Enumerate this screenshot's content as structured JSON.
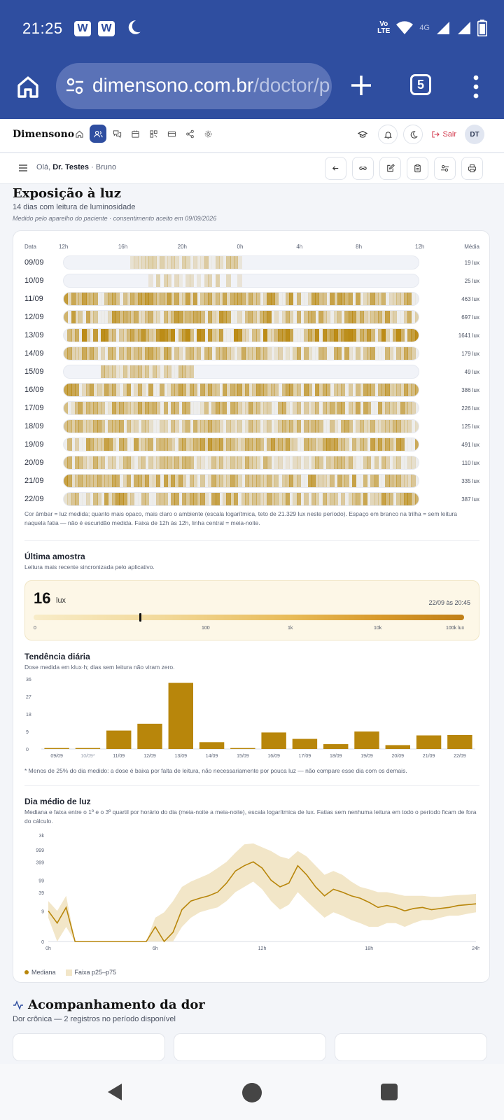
{
  "status": {
    "time": "21:25",
    "icons": [
      "w-app-icon",
      "w-app-icon",
      "moon-icon"
    ],
    "network": "4G",
    "volte": "Vo LTE"
  },
  "browser": {
    "url_host": "dimensono.com.br",
    "url_path": "/doctor/p",
    "tab_count": "5"
  },
  "app": {
    "brand": "Dimensono",
    "nav_icons": [
      "home-icon",
      "patients-icon",
      "chat-icon",
      "calendar-icon",
      "qr-icon",
      "card-icon",
      "share-icon",
      "settings-icon"
    ],
    "logout_label": "Sair",
    "avatar_initials": "DT"
  },
  "subheader": {
    "greeting_prefix": "Olá, ",
    "doctor": "Dr. Testes",
    "separator": " · ",
    "patient": "Bruno"
  },
  "light": {
    "title": "Exposição à luz",
    "subtitle": "14 dias com leitura de luminosidade",
    "note": "Medido pelo aparelho do paciente · consentimento aceito em 09/09/2026",
    "col_date": "Data",
    "col_mean": "Média",
    "hour_ticks": [
      "12h",
      "16h",
      "20h",
      "0h",
      "4h",
      "8h",
      "12h"
    ],
    "rows": [
      {
        "date": "09/09",
        "mean": "19 lux",
        "level": 0.35,
        "start": 0.18,
        "end": 0.5,
        "seed": 3
      },
      {
        "date": "10/09",
        "mean": "25 lux",
        "level": 0.3,
        "start": 0.22,
        "end": 0.5,
        "sparse": true,
        "seed": 7
      },
      {
        "date": "11/09",
        "mean": "463 lux",
        "level": 0.75,
        "start": 0.0,
        "end": 1.0,
        "seed": 11
      },
      {
        "date": "12/09",
        "mean": "697 lux",
        "level": 0.75,
        "start": 0.0,
        "end": 1.0,
        "seed": 13
      },
      {
        "date": "13/09",
        "mean": "1641 lux",
        "level": 0.9,
        "start": 0.0,
        "end": 1.0,
        "seed": 17
      },
      {
        "date": "14/09",
        "mean": "179 lux",
        "level": 0.6,
        "start": 0.0,
        "end": 1.0,
        "seed": 19
      },
      {
        "date": "15/09",
        "mean": "49 lux",
        "level": 0.4,
        "start": 0.1,
        "end": 0.36,
        "seed": 23
      },
      {
        "date": "16/09",
        "mean": "386 lux",
        "level": 0.65,
        "start": 0.0,
        "end": 1.0,
        "seed": 29
      },
      {
        "date": "17/09",
        "mean": "226 lux",
        "level": 0.6,
        "start": 0.0,
        "end": 1.0,
        "seed": 31
      },
      {
        "date": "18/09",
        "mean": "125 lux",
        "level": 0.55,
        "start": 0.0,
        "end": 1.0,
        "seed": 37
      },
      {
        "date": "19/09",
        "mean": "491 lux",
        "level": 0.7,
        "start": 0.0,
        "end": 1.0,
        "seed": 41
      },
      {
        "date": "20/09",
        "mean": "110 lux",
        "level": 0.5,
        "start": 0.0,
        "end": 1.0,
        "seed": 43
      },
      {
        "date": "21/09",
        "mean": "335 lux",
        "level": 0.65,
        "start": 0.0,
        "end": 1.0,
        "seed": 47
      },
      {
        "date": "22/09",
        "mean": "387 lux",
        "level": 0.65,
        "start": 0.0,
        "end": 1.0,
        "seed": 53
      }
    ],
    "caption": "Cor âmbar = luz medida; quanto mais opaco, mais claro o ambiente (escala logarítmica, teto de 21.329 lux neste período). Espaço em branco na trilha = sem leitura naquela fatia — não é escuridão medida. Faixa de 12h às 12h, linha central = meia-noite."
  },
  "last_sample": {
    "title": "Última amostra",
    "desc": "Leitura mais recente sincronizada pelo aplicativo.",
    "value": "16",
    "unit": "lux",
    "timestamp": "22/09 às 20:45",
    "lux_value": 16,
    "scale_labels": [
      "0",
      "100",
      "1k",
      "10k",
      "100k lux"
    ]
  },
  "daily_trend": {
    "title": "Tendência diária",
    "desc": "Dose medida em klux·h; dias sem leitura não viram zero.",
    "footnote": "* Menos de 25% do dia medido: a dose é baixa por falta de leitura, não necessariamente por pouca luz — não compare esse dia com os demais."
  },
  "mean_day": {
    "title": "Dia médio de luz",
    "desc": "Mediana e faixa entre o 1º e o 3º quartil por horário do dia (meia-noite a meia-noite), escala logarítmica de lux. Fatias sem nenhuma leitura em todo o período ficam de fora do cálculo.",
    "legend_median": "Mediana",
    "legend_band": "Faixa p25–p75"
  },
  "pain": {
    "title": "Acompanhamento da dor",
    "subtitle": "Dor crônica — 2 registros no período disponível"
  },
  "colors": {
    "brand": "#2f4ea0",
    "amber": "#b8860b",
    "band": "#f2e6c8",
    "logout": "#d33a4d"
  },
  "chart_data": [
    {
      "type": "bar",
      "title": "Tendência diária",
      "ylabel": "klux·h",
      "categories": [
        "09/09",
        "10/09*",
        "11/09",
        "12/09",
        "13/09",
        "14/09",
        "15/09",
        "16/09",
        "17/09",
        "18/09",
        "19/09",
        "20/09",
        "21/09",
        "22/09"
      ],
      "values": [
        0.5,
        0.5,
        9.5,
        13,
        34,
        3.5,
        0.5,
        8.5,
        5.2,
        2.5,
        9,
        2,
        7,
        7.2
      ],
      "yticks": [
        0,
        9,
        18,
        27,
        36
      ],
      "ylim": [
        0,
        36
      ]
    },
    {
      "type": "area",
      "title": "Dia médio de luz",
      "xlabel": "",
      "ylabel": "lux",
      "yscale": "log",
      "xticks": [
        "0h",
        "6h",
        "12h",
        "18h",
        "24h"
      ],
      "yticks": [
        "0",
        "9",
        "39",
        "99",
        "399",
        "999",
        "3k"
      ],
      "hours": [
        0,
        0.5,
        1,
        1.5,
        2,
        2.5,
        3,
        3.5,
        4,
        4.5,
        5,
        5.5,
        6,
        6.5,
        7,
        7.5,
        8,
        8.5,
        9,
        9.5,
        10,
        10.5,
        11,
        11.5,
        12,
        12.5,
        13,
        13.5,
        14,
        14.5,
        15,
        15.5,
        16,
        16.5,
        17,
        17.5,
        18,
        18.5,
        19,
        19.5,
        20,
        20.5,
        21,
        21.5,
        22,
        22.5,
        23,
        23.5,
        24
      ],
      "median": [
        9,
        3,
        12,
        0,
        0,
        0,
        0,
        0,
        0,
        0,
        0,
        0,
        2,
        0,
        1,
        10,
        20,
        25,
        30,
        40,
        80,
        200,
        300,
        400,
        250,
        100,
        60,
        80,
        300,
        150,
        60,
        30,
        50,
        40,
        30,
        25,
        18,
        12,
        14,
        12,
        9,
        11,
        12,
        10,
        11,
        12,
        14,
        15,
        16
      ],
      "p25": [
        5,
        0,
        2,
        0,
        0,
        0,
        0,
        0,
        0,
        0,
        0,
        0,
        0,
        0,
        0,
        2,
        5,
        8,
        10,
        12,
        20,
        40,
        60,
        90,
        50,
        20,
        10,
        15,
        40,
        20,
        10,
        5,
        8,
        6,
        4,
        3,
        2,
        2,
        3,
        3,
        2,
        3,
        4,
        4,
        5,
        6,
        6,
        7,
        8
      ],
      "p75": [
        20,
        9,
        30,
        0,
        0,
        0,
        0,
        0,
        0,
        0,
        0,
        0,
        5,
        8,
        20,
        60,
        90,
        120,
        160,
        250,
        400,
        800,
        1500,
        1600,
        1200,
        900,
        600,
        500,
        900,
        600,
        300,
        150,
        200,
        150,
        90,
        60,
        50,
        40,
        40,
        35,
        30,
        30,
        30,
        28,
        28,
        30,
        32,
        33,
        35
      ]
    }
  ]
}
